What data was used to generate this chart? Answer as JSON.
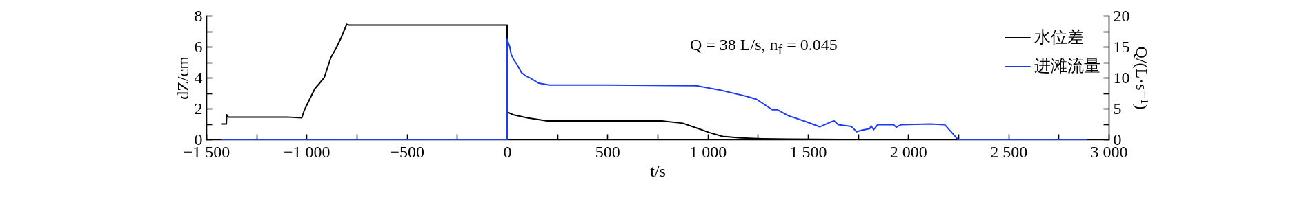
{
  "chart_data": {
    "type": "line",
    "xlabel": "t/s",
    "ylabel": "dZ/cm",
    "y2label": "Q/(L·s⁻¹)",
    "annotations": [
      "Q = 38 L/s, n$_{f}$ = 0.045"
    ],
    "xlim": [
      -1500,
      3000
    ],
    "xticks": [
      {
        "value": -1500,
        "label": "−1 500"
      },
      {
        "value": -1250,
        "label": null
      },
      {
        "value": -1000,
        "label": "−1 000"
      },
      {
        "value": -750,
        "label": null
      },
      {
        "value": -500,
        "label": "−500"
      },
      {
        "value": -250,
        "label": null
      },
      0,
      {
        "value": 250,
        "label": null
      },
      500,
      {
        "value": 750,
        "label": null
      },
      {
        "value": 1000,
        "label": "1 000"
      },
      {
        "value": 1250,
        "label": null
      },
      {
        "value": 1500,
        "label": "1 500"
      },
      {
        "value": 1750,
        "label": null
      },
      {
        "value": 2000,
        "label": "2 000"
      },
      {
        "value": 2250,
        "label": null
      },
      {
        "value": 2500,
        "label": "2 500"
      },
      {
        "value": 2750,
        "label": null
      },
      {
        "value": 3000,
        "label": "3 000"
      }
    ],
    "ylim": [
      0,
      8
    ],
    "yticks": [
      0,
      {
        "value": 1,
        "label": null
      },
      2,
      {
        "value": 3,
        "label": null
      },
      4,
      {
        "value": 5,
        "label": null
      },
      6,
      {
        "value": 7,
        "label": null
      },
      8
    ],
    "y2lim": [
      0,
      20
    ],
    "y2ticks": [
      0,
      {
        "value": 2.5,
        "label": null
      },
      5,
      {
        "value": 7.5,
        "label": null
      },
      10,
      {
        "value": 12.5,
        "label": null
      },
      15,
      {
        "value": 17.5,
        "label": null
      },
      20
    ],
    "legend": "top right",
    "grid": false,
    "marker": "none",
    "line_style": "solid",
    "series": [
      {
        "name": "水位差",
        "color": "#000000",
        "x": [
          -1421,
          -1400,
          -1398,
          -1390,
          -1100,
          -1024,
          -1011,
          -985,
          -958,
          -938,
          -912,
          -879,
          -853,
          -827,
          -800,
          -790,
          -768,
          -400,
          0,
          0,
          5,
          30,
          100,
          150,
          200,
          500,
          772,
          876,
          954,
          1008,
          1074,
          1165,
          1270,
          1402,
          1664,
          2890
        ],
        "values": [
          1.0,
          1.0,
          1.6,
          1.45,
          1.45,
          1.4,
          1.9,
          2.6,
          3.3,
          3.6,
          4.0,
          5.3,
          5.9,
          6.6,
          7.45,
          7.4,
          7.4,
          7.4,
          7.4,
          1.75,
          1.75,
          1.6,
          1.4,
          1.3,
          1.2,
          1.2,
          1.2,
          1.05,
          0.7,
          0.45,
          0.2,
          0.1,
          0.05,
          0.02,
          0,
          0
        ]
      },
      {
        "name": "进滩流量",
        "color": "#1a3cf5",
        "axis": "y2",
        "x": [
          -1421,
          0,
          0,
          13,
          20,
          33,
          46,
          72,
          92,
          112,
          158,
          210,
          500,
          942,
          1060,
          1139,
          1192,
          1244,
          1323,
          1349,
          1402,
          1480,
          1559,
          1612,
          1631,
          1651,
          1717,
          1743,
          1769,
          1808,
          1815,
          1828,
          1848,
          1927,
          1940,
          1966,
          2110,
          2182,
          2215,
          2248,
          2275,
          2323,
          2890
        ],
        "values": [
          0,
          0,
          16.2,
          15,
          13.8,
          12.9,
          12.3,
          10.8,
          10.3,
          10.0,
          9.1,
          8.8,
          8.8,
          8.7,
          8.0,
          7.4,
          7.0,
          6.5,
          4.8,
          4.8,
          3.85,
          3.0,
          2.05,
          2.8,
          3.0,
          2.4,
          2.1,
          1.25,
          1.5,
          1.75,
          2.2,
          1.6,
          2.4,
          2.4,
          2.0,
          2.4,
          2.5,
          2.4,
          1.2,
          0,
          0,
          0,
          0
        ]
      }
    ]
  }
}
